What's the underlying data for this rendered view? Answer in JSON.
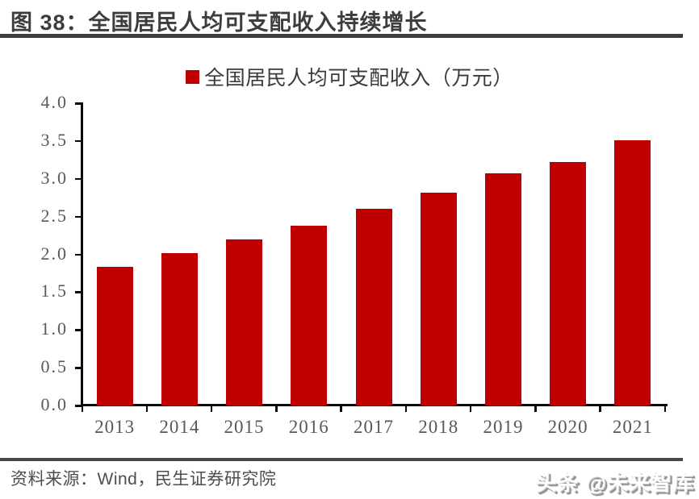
{
  "header": {
    "title": "图 38：全国居民人均可支配收入持续增长"
  },
  "legend": {
    "label": "全国居民人均可支配收入（万元）"
  },
  "chart_data": {
    "type": "bar",
    "title": "图 38：全国居民人均可支配收入持续增长",
    "categories": [
      "2013",
      "2014",
      "2015",
      "2016",
      "2017",
      "2018",
      "2019",
      "2020",
      "2021"
    ],
    "series": [
      {
        "name": "全国居民人均可支配收入（万元）",
        "values": [
          1.83,
          2.02,
          2.2,
          2.38,
          2.6,
          2.82,
          3.07,
          3.22,
          3.51
        ]
      }
    ],
    "unit": "万元",
    "xlabel": "",
    "ylabel": "",
    "ylim": [
      0.0,
      4.0
    ],
    "ytick_step": 0.5,
    "ytick_labels": [
      "0.0",
      "0.5",
      "1.0",
      "1.5",
      "2.0",
      "2.5",
      "3.0",
      "3.5",
      "4.0"
    ],
    "grid": false,
    "legend_position": "top-center",
    "bar_color": "#c00000"
  },
  "footer": {
    "source": "资料来源：Wind，民生证券研究院",
    "watermark": "头条 @未来智库"
  },
  "colors": {
    "bar": "#c00000",
    "title_text": "#3d3d3d",
    "rule": "#3d3d3d",
    "axis_line": "#0a0a0a",
    "axis_text": "#595959",
    "footer_text": "#4d4d4d"
  }
}
